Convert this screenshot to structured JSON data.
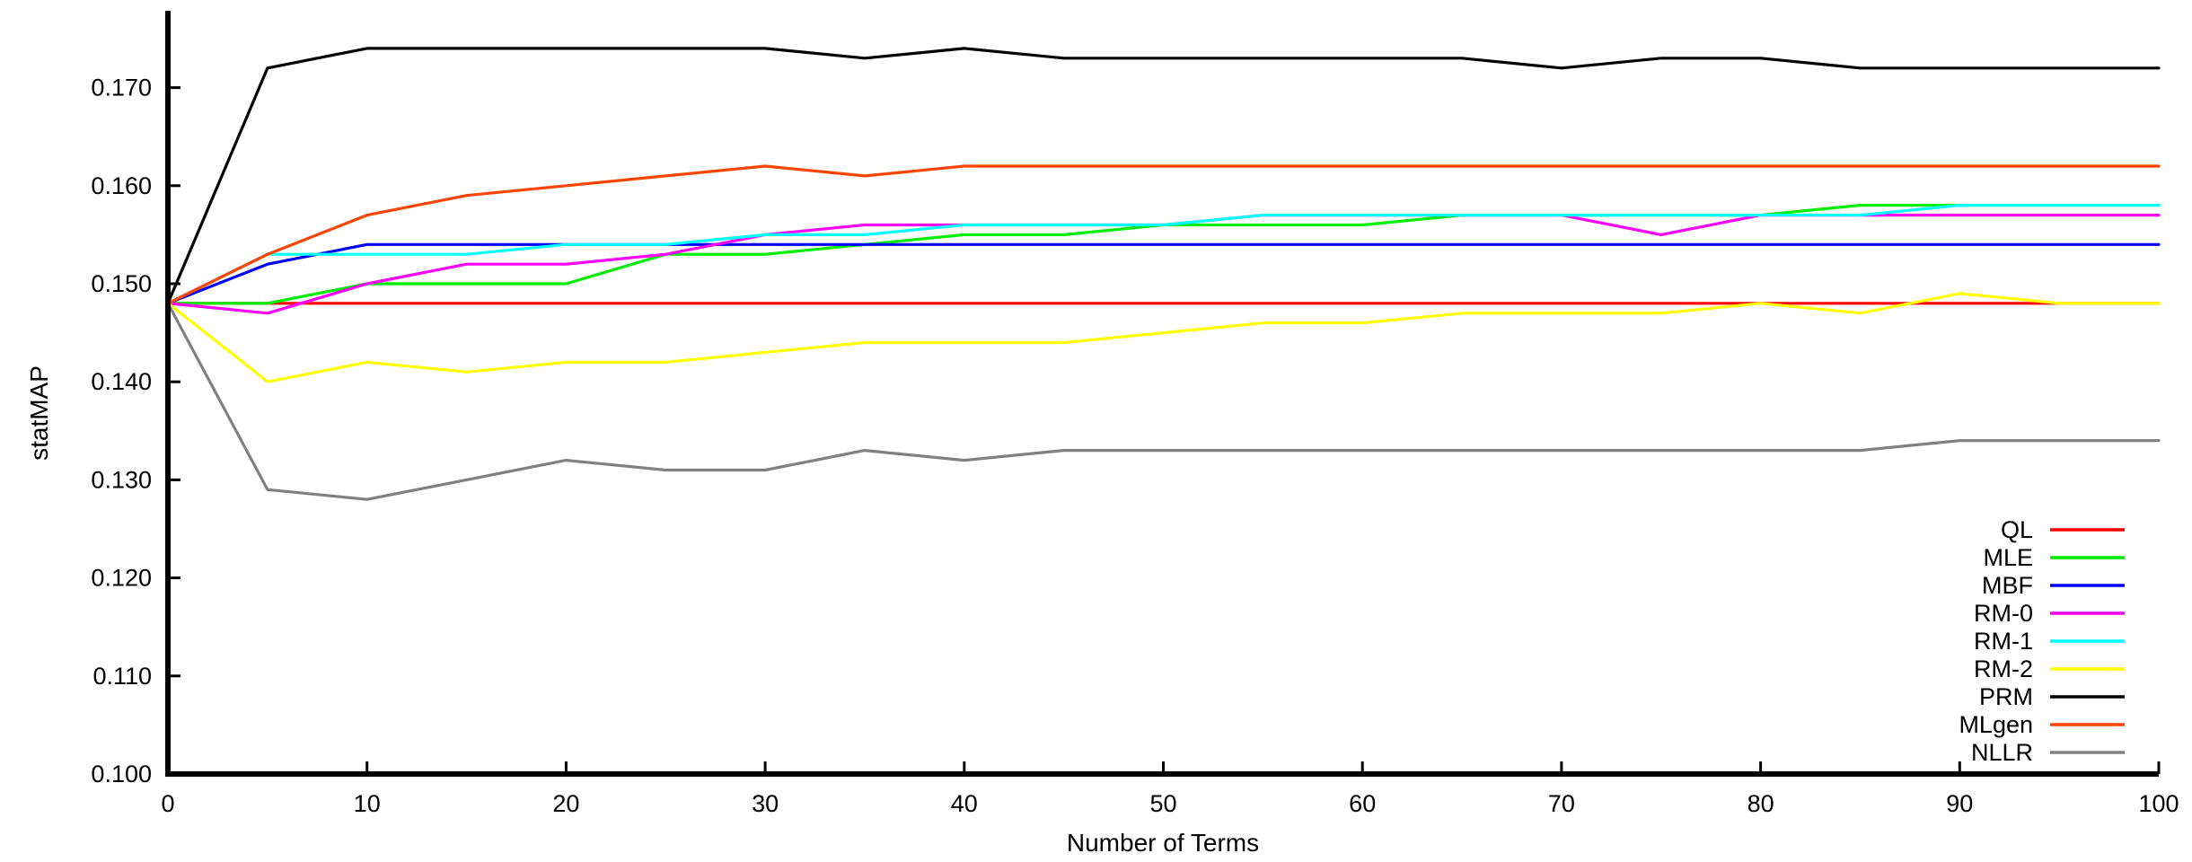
{
  "chart_data": {
    "type": "line",
    "title": "",
    "xlabel": "Number of Terms",
    "ylabel": "statMAP",
    "xlim": [
      0,
      100
    ],
    "ylim": [
      0.1,
      0.176
    ],
    "grid": false,
    "legend_position": "bottom-right",
    "x": [
      0,
      5,
      10,
      15,
      20,
      25,
      30,
      35,
      40,
      45,
      50,
      55,
      60,
      65,
      70,
      75,
      80,
      85,
      90,
      95,
      100
    ],
    "x_ticks": [
      "0",
      "10",
      "20",
      "30",
      "40",
      "50",
      "60",
      "70",
      "80",
      "90",
      "100"
    ],
    "x_tick_values": [
      0,
      10,
      20,
      30,
      40,
      50,
      60,
      70,
      80,
      90,
      100
    ],
    "y_ticks": [
      "0.100",
      "0.110",
      "0.120",
      "0.130",
      "0.140",
      "0.150",
      "0.160",
      "0.170"
    ],
    "y_tick_values": [
      0.1,
      0.11,
      0.12,
      0.13,
      0.14,
      0.15,
      0.16,
      0.17
    ],
    "series": [
      {
        "name": "QL",
        "color": "#ff0000",
        "values": [
          0.148,
          0.148,
          0.148,
          0.148,
          0.148,
          0.148,
          0.148,
          0.148,
          0.148,
          0.148,
          0.148,
          0.148,
          0.148,
          0.148,
          0.148,
          0.148,
          0.148,
          0.148,
          0.148,
          0.148,
          0.148
        ]
      },
      {
        "name": "MLE",
        "color": "#00ee00",
        "values": [
          0.148,
          0.148,
          0.15,
          0.15,
          0.15,
          0.153,
          0.153,
          0.154,
          0.155,
          0.155,
          0.156,
          0.156,
          0.156,
          0.157,
          0.157,
          0.157,
          0.157,
          0.158,
          0.158,
          0.158,
          0.158
        ]
      },
      {
        "name": "MBF",
        "color": "#0000ff",
        "values": [
          0.148,
          0.152,
          0.154,
          0.154,
          0.154,
          0.154,
          0.154,
          0.154,
          0.154,
          0.154,
          0.154,
          0.154,
          0.154,
          0.154,
          0.154,
          0.154,
          0.154,
          0.154,
          0.154,
          0.154,
          0.154
        ]
      },
      {
        "name": "RM-0",
        "color": "#ff00ff",
        "values": [
          0.148,
          0.147,
          0.15,
          0.152,
          0.152,
          0.153,
          0.155,
          0.156,
          0.156,
          0.156,
          0.156,
          0.157,
          0.157,
          0.157,
          0.157,
          0.155,
          0.157,
          0.157,
          0.157,
          0.157,
          0.157
        ]
      },
      {
        "name": "RM-1",
        "color": "#00ffff",
        "values": [
          0.148,
          0.153,
          0.153,
          0.153,
          0.154,
          0.154,
          0.155,
          0.155,
          0.156,
          0.156,
          0.156,
          0.157,
          0.157,
          0.157,
          0.157,
          0.157,
          0.157,
          0.157,
          0.158,
          0.158,
          0.158
        ]
      },
      {
        "name": "RM-2",
        "color": "#ffff00",
        "values": [
          0.148,
          0.14,
          0.142,
          0.141,
          0.142,
          0.142,
          0.143,
          0.144,
          0.144,
          0.144,
          0.145,
          0.146,
          0.146,
          0.147,
          0.147,
          0.147,
          0.148,
          0.147,
          0.149,
          0.148,
          0.148
        ]
      },
      {
        "name": "PRM",
        "color": "#000000",
        "values": [
          0.148,
          0.172,
          0.174,
          0.174,
          0.174,
          0.174,
          0.174,
          0.173,
          0.174,
          0.173,
          0.173,
          0.173,
          0.173,
          0.173,
          0.172,
          0.173,
          0.173,
          0.172,
          0.172,
          0.172,
          0.172
        ]
      },
      {
        "name": "MLgen",
        "color": "#ff4500",
        "values": [
          0.148,
          0.153,
          0.157,
          0.159,
          0.16,
          0.161,
          0.162,
          0.161,
          0.162,
          0.162,
          0.162,
          0.162,
          0.162,
          0.162,
          0.162,
          0.162,
          0.162,
          0.162,
          0.162,
          0.162,
          0.162
        ]
      },
      {
        "name": "NLLR",
        "color": "#808080",
        "values": [
          0.148,
          0.129,
          0.128,
          0.13,
          0.132,
          0.131,
          0.131,
          0.133,
          0.132,
          0.133,
          0.133,
          0.133,
          0.133,
          0.133,
          0.133,
          0.133,
          0.133,
          0.133,
          0.134,
          0.134,
          0.134
        ]
      }
    ]
  }
}
